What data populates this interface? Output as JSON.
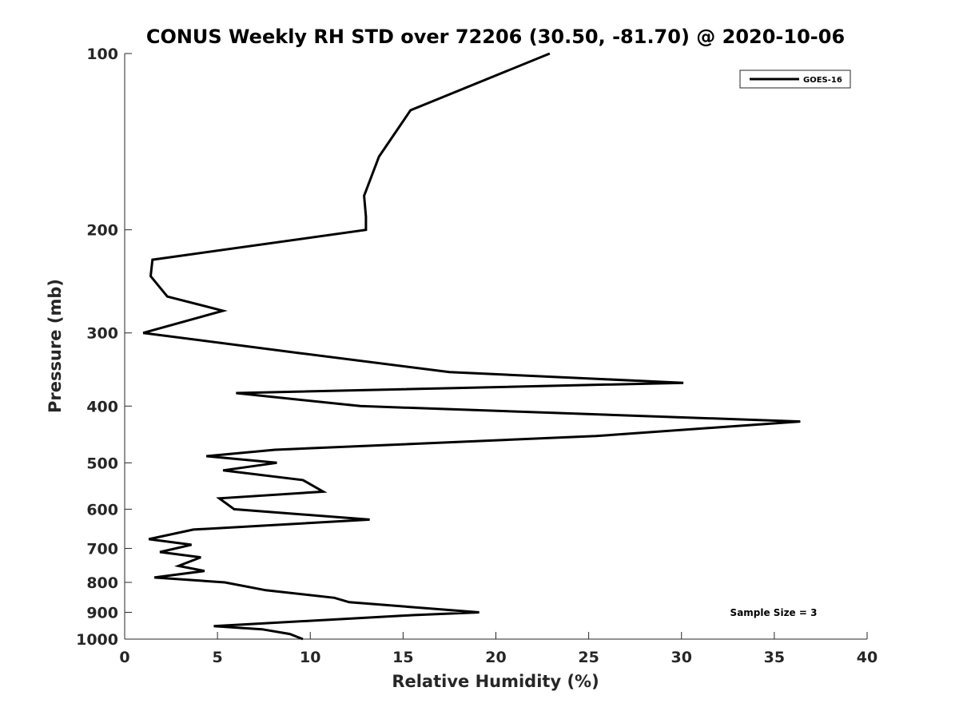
{
  "chart_data": {
    "type": "line",
    "title": "CONUS Weekly RH STD over 72206 (30.50, -81.70) @ 2020-10-06",
    "xlabel": "Relative Humidity (%)",
    "ylabel": "Pressure (mb)",
    "xlim": [
      0,
      40
    ],
    "ylim": [
      100,
      1000
    ],
    "y_scale": "log",
    "y_reversed": true,
    "grid": false,
    "x_ticks": [
      0,
      5,
      10,
      15,
      20,
      25,
      30,
      35,
      40
    ],
    "x_tick_labels": [
      "0",
      "5",
      "10",
      "15",
      "20",
      "25",
      "30",
      "35",
      "40"
    ],
    "y_ticks": [
      100,
      200,
      300,
      400,
      500,
      600,
      700,
      800,
      900,
      1000
    ],
    "y_tick_labels": [
      "100",
      "200",
      "300",
      "400",
      "500",
      "600",
      "700",
      "800",
      "900",
      "1000"
    ],
    "legend": {
      "position": "top-right",
      "entries": [
        "GOES-16"
      ]
    },
    "annotation": "Sample Size = 3",
    "series": [
      {
        "name": "GOES-16",
        "color": "#000000",
        "x": [
          22.9,
          15.4,
          13.7,
          12.9,
          13.0,
          13.0,
          1.5,
          1.4,
          2.3,
          5.3,
          1.0,
          9.5,
          17.5,
          30.1,
          6.0,
          12.7,
          36.4,
          25.4,
          8.1,
          4.4,
          8.2,
          5.3,
          9.6,
          10.7,
          5.1,
          5.9,
          13.2,
          3.7,
          1.3,
          3.6,
          1.9,
          4.1,
          2.9,
          4.3,
          1.6,
          5.4,
          7.6,
          11.3,
          12.1,
          19.1,
          15.5,
          4.8,
          7.4,
          8.9,
          9.6
        ],
        "y": [
          100,
          125,
          150,
          175,
          190,
          200,
          225,
          240,
          260,
          275,
          300,
          325,
          350,
          365,
          380,
          400,
          425,
          450,
          475,
          487,
          500,
          515,
          535,
          560,
          575,
          600,
          625,
          650,
          675,
          690,
          710,
          725,
          750,
          765,
          785,
          800,
          825,
          850,
          865,
          900,
          910,
          950,
          962,
          980,
          1000
        ]
      }
    ]
  }
}
